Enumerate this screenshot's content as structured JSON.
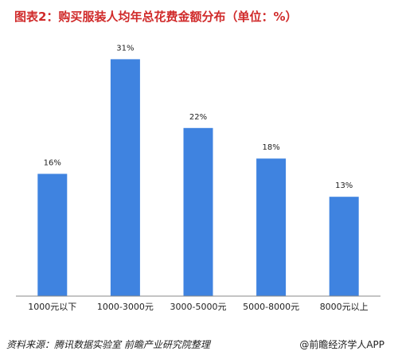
{
  "title": "图表2：购买服装人均年总花费金额分布（单位：%）",
  "source": "资料来源：腾讯数据实验室  前瞻产业研究院整理",
  "brand": "@前瞻经济学人APP",
  "colors": {
    "bar": "#3f83e0",
    "title": "#d02a2a",
    "axis": "#888888",
    "text": "#222222"
  },
  "chart_data": {
    "type": "bar",
    "title": "图表2：购买服装人均年总花费金额分布（单位：%）",
    "categories": [
      "1000元以下",
      "1000-3000元",
      "3000-5000元",
      "5000-8000元",
      "8000元以上"
    ],
    "values": [
      16,
      31,
      22,
      18,
      13
    ],
    "value_labels": [
      "16%",
      "31%",
      "22%",
      "18%",
      "13%"
    ],
    "xlabel": "",
    "ylabel": "",
    "ylim": [
      0,
      35
    ],
    "grid": false,
    "legend": "none"
  }
}
